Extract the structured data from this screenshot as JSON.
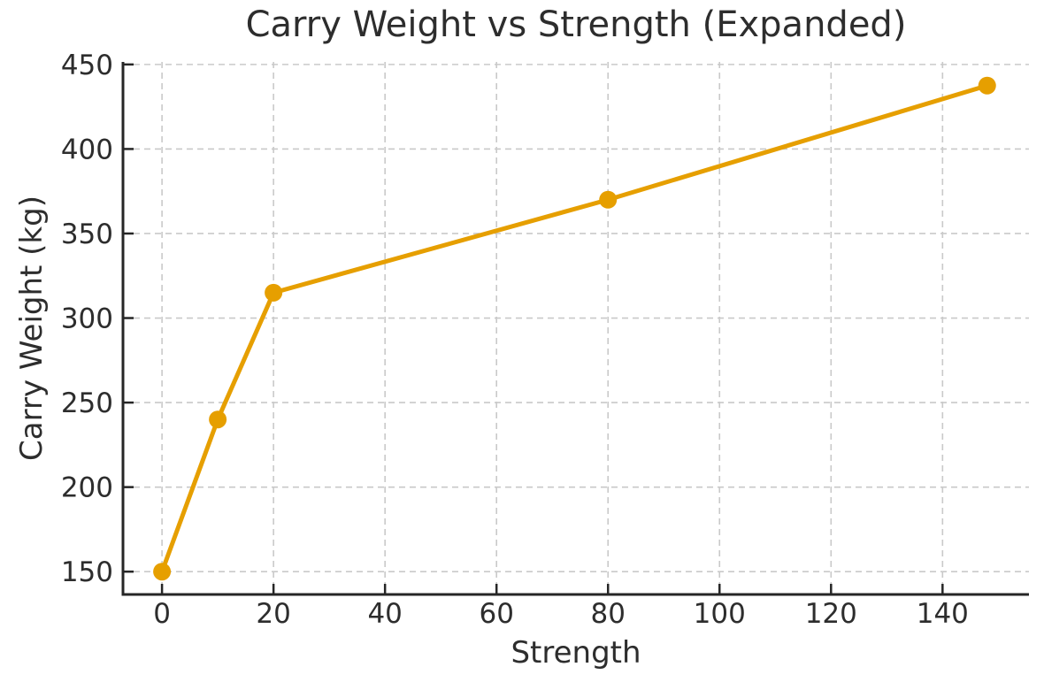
{
  "chart_data": {
    "type": "line",
    "title": "Carry Weight vs Strength (Expanded)",
    "xlabel": "Strength",
    "ylabel": "Carry Weight (kg)",
    "x": [
      0,
      10,
      20,
      80,
      148
    ],
    "y": [
      150,
      240,
      315,
      370,
      437.5
    ],
    "xticks": [
      0,
      20,
      40,
      60,
      80,
      100,
      120,
      140
    ],
    "yticks": [
      150,
      200,
      250,
      300,
      350,
      400,
      450
    ],
    "xlim": [
      -7.0,
      155.5
    ],
    "ylim": [
      136.5,
      451.5
    ],
    "grid": true,
    "grid_style": "dashed",
    "legend_position": "none",
    "line_color": "#E69F00",
    "marker": "circle",
    "marker_radius": 10,
    "line_width": 5,
    "grid_color": "#c9c9c9",
    "axis_color": "#262626",
    "text_color": "#2d2d2d",
    "background": "#ffffff",
    "tick_direction": "in",
    "tick_font_size": 31,
    "label_font_size": 34,
    "title_font_size": 40
  }
}
